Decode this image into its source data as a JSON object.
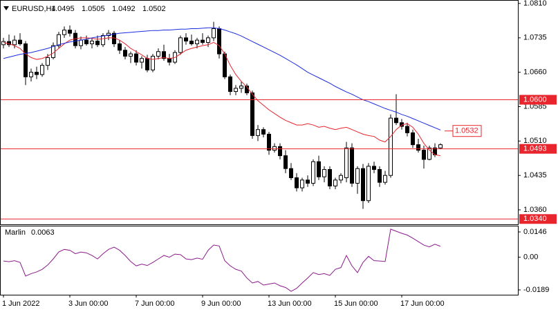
{
  "chart_data": [
    {
      "type": "candlestick",
      "symbol": "EURUSD,H4",
      "categories": [
        "1 Jun 2022",
        null,
        null,
        null,
        null,
        null,
        null,
        null,
        null,
        null,
        null,
        null,
        "3 Jun 00:00",
        null,
        null,
        null,
        null,
        null,
        null,
        null,
        null,
        null,
        null,
        null,
        "7 Jun 00:00",
        null,
        null,
        null,
        null,
        null,
        null,
        null,
        null,
        null,
        null,
        null,
        "9 Jun 00:00",
        null,
        null,
        null,
        null,
        null,
        null,
        null,
        null,
        null,
        null,
        null,
        "13 Jun 00:00",
        null,
        null,
        null,
        null,
        null,
        null,
        null,
        null,
        null,
        null,
        null,
        "15 Jun 00:00",
        null,
        null,
        null,
        null,
        null,
        null,
        null,
        null,
        null,
        null,
        null,
        "17 Jun 00:00",
        null,
        null,
        null,
        null,
        null,
        null,
        null
      ],
      "open": [
        1.072,
        1.0727,
        1.072,
        1.073,
        1.0722,
        1.065,
        1.066,
        1.0655,
        1.0675,
        1.0692,
        1.0718,
        1.0742,
        1.0752,
        1.0745,
        1.0718,
        1.073,
        1.0722,
        1.0728,
        1.072,
        1.074,
        1.0745,
        1.0722,
        1.0708,
        1.0695,
        1.07,
        1.0682,
        1.069,
        1.0665,
        1.0695,
        1.0705,
        1.069,
        1.0682,
        1.0703,
        1.0735,
        1.0728,
        1.0722,
        1.073,
        1.0725,
        1.0735,
        1.0755,
        1.07,
        1.065,
        1.0618,
        1.0625,
        1.063,
        1.0615,
        1.0522,
        1.0535,
        1.0525,
        1.049,
        1.0498,
        1.0478,
        1.045,
        1.043,
        1.0408,
        1.0425,
        1.0418,
        1.0465,
        1.0432,
        1.0448,
        1.0412,
        1.0425,
        1.043,
        1.0495,
        1.0418,
        1.045,
        1.038,
        1.0455,
        1.0448,
        1.042,
        1.0435,
        1.056,
        1.055,
        1.0542,
        1.0528,
        1.0502,
        1.049,
        1.047,
        1.0495,
        1.0495
      ],
      "high": [
        1.0735,
        1.0742,
        1.074,
        1.0745,
        1.0728,
        1.0668,
        1.0672,
        1.068,
        1.07,
        1.0725,
        1.0748,
        1.076,
        1.0762,
        1.0752,
        1.0738,
        1.074,
        1.0735,
        1.074,
        1.0745,
        1.0752,
        1.075,
        1.073,
        1.0715,
        1.0705,
        1.0708,
        1.0695,
        1.0698,
        1.07,
        1.0712,
        1.072,
        1.07,
        1.0708,
        1.074,
        1.0745,
        1.0742,
        1.0735,
        1.0745,
        1.074,
        1.077,
        1.076,
        1.0705,
        1.0655,
        1.0632,
        1.064,
        1.0635,
        1.062,
        1.0545,
        1.054,
        1.053,
        1.0505,
        1.0505,
        1.049,
        1.0462,
        1.044,
        1.043,
        1.0435,
        1.047,
        1.0478,
        1.0455,
        1.0455,
        1.043,
        1.044,
        1.0508,
        1.0505,
        1.0455,
        1.046,
        1.0462,
        1.0465,
        1.0455,
        1.0445,
        1.0568,
        1.0612,
        1.0558,
        1.055,
        1.0535,
        1.0515,
        1.05,
        1.05,
        1.0505,
        1.0505
      ],
      "low": [
        1.0712,
        1.0715,
        1.0712,
        1.0718,
        1.0632,
        1.064,
        1.0645,
        1.065,
        1.0665,
        1.0688,
        1.0712,
        1.0735,
        1.0738,
        1.0712,
        1.071,
        1.0718,
        1.0712,
        1.0715,
        1.0715,
        1.073,
        1.0715,
        1.07,
        1.0688,
        1.068,
        1.0675,
        1.0668,
        1.066,
        1.066,
        1.0688,
        1.0685,
        1.0675,
        1.0678,
        1.0698,
        1.072,
        1.0718,
        1.0712,
        1.072,
        1.0715,
        1.0728,
        1.069,
        1.0645,
        1.061,
        1.061,
        1.0615,
        1.061,
        1.0515,
        1.051,
        1.0518,
        1.048,
        1.0485,
        1.047,
        1.044,
        1.0425,
        1.04,
        1.04,
        1.041,
        1.0412,
        1.0425,
        1.042,
        1.0405,
        1.0405,
        1.0418,
        1.042,
        1.041,
        1.0395,
        1.0362,
        1.0375,
        1.044,
        1.041,
        1.0415,
        1.043,
        1.0545,
        1.0535,
        1.052,
        1.0495,
        1.0485,
        1.045,
        1.0468,
        1.0475,
        1.0492
      ],
      "close": [
        1.0727,
        1.072,
        1.073,
        1.0722,
        1.065,
        1.066,
        1.0655,
        1.0675,
        1.0692,
        1.0718,
        1.0742,
        1.0752,
        1.0745,
        1.0718,
        1.073,
        1.0722,
        1.0728,
        1.072,
        1.074,
        1.0745,
        1.0722,
        1.0708,
        1.0695,
        1.07,
        1.0682,
        1.069,
        1.0665,
        1.0695,
        1.0705,
        1.069,
        1.0682,
        1.0703,
        1.0735,
        1.0728,
        1.0722,
        1.073,
        1.0725,
        1.0735,
        1.0755,
        1.07,
        1.065,
        1.0618,
        1.0625,
        1.063,
        1.0615,
        1.0522,
        1.0535,
        1.0525,
        1.049,
        1.0498,
        1.0478,
        1.045,
        1.043,
        1.0408,
        1.0425,
        1.0418,
        1.0465,
        1.0432,
        1.0448,
        1.0412,
        1.0425,
        1.0435,
        1.0495,
        1.0418,
        1.045,
        1.038,
        1.0455,
        1.0448,
        1.042,
        1.0435,
        1.056,
        1.055,
        1.0542,
        1.0528,
        1.0502,
        1.049,
        1.047,
        1.0495,
        1.048,
        1.0502
      ],
      "series": [
        {
          "color": "#e8242c",
          "values": [
            1.0725,
            1.0722,
            1.0718,
            1.0712,
            1.07,
            1.0692,
            1.0688,
            1.069,
            1.0695,
            1.0702,
            1.0712,
            1.0722,
            1.073,
            1.0733,
            1.0735,
            1.0735,
            1.0734,
            1.0732,
            1.0733,
            1.0735,
            1.0735,
            1.073,
            1.0722,
            1.0712,
            1.0705,
            1.0698,
            1.069,
            1.0688,
            1.069,
            1.0692,
            1.069,
            1.0692,
            1.07,
            1.0708,
            1.0712,
            1.0715,
            1.0718,
            1.072,
            1.0725,
            1.0718,
            1.07,
            1.0675,
            1.0655,
            1.064,
            1.0628,
            1.0612,
            1.0598,
            1.0588,
            1.0578,
            1.057,
            1.0562,
            1.0555,
            1.055,
            1.0545,
            1.0545,
            1.0548,
            1.0545,
            1.054,
            1.0542,
            1.0538,
            1.0535,
            1.0538,
            1.054,
            1.0535,
            1.053,
            1.0525,
            1.0522,
            1.052,
            1.0512,
            1.0508,
            1.052,
            1.0535,
            1.0545,
            1.0548,
            1.054,
            1.0525,
            1.0505,
            1.049,
            1.048,
            1.0478
          ]
        },
        {
          "color": "#1a2be0",
          "values": [
            1.069,
            1.0693,
            1.0696,
            1.0699,
            1.0701,
            1.0703,
            1.0706,
            1.0709,
            1.0712,
            1.0716,
            1.072,
            1.0723,
            1.0726,
            1.0728,
            1.073,
            1.0732,
            1.0735,
            1.0737,
            1.0739,
            1.0741,
            1.0743,
            1.0745,
            1.0746,
            1.0747,
            1.0748,
            1.0749,
            1.075,
            1.0751,
            1.0751,
            1.0752,
            1.0752,
            1.0753,
            1.0754,
            1.0754,
            1.0755,
            1.0755,
            1.0756,
            1.0757,
            1.0757,
            1.0755,
            1.0752,
            1.0748,
            1.0744,
            1.0739,
            1.0733,
            1.0727,
            1.0721,
            1.0715,
            1.0709,
            1.0703,
            1.0697,
            1.069,
            1.0683,
            1.0676,
            1.0668,
            1.066,
            1.0654,
            1.0648,
            1.0642,
            1.0636,
            1.0629,
            1.0623,
            1.0617,
            1.0612,
            1.0606,
            1.06,
            1.0596,
            1.0591,
            1.0586,
            1.0581,
            1.0577,
            1.0573,
            1.0568,
            1.0564,
            1.0559,
            1.0554,
            1.0549,
            1.0544,
            1.0539,
            1.0534
          ]
        }
      ],
      "levels": [
        {
          "value": 1.06,
          "label": "1.0600"
        },
        1.0493,
        {
          "value": 1.034,
          "label": "1.0340"
        }
      ],
      "level_color": "#e8242c",
      "tags": [
        1.0532
      ],
      "ylim": [
        1.03284,
        1.08175
      ],
      "yticks": [
        {
          "value": 1.081,
          "label": "1.0810"
        },
        1.0735,
        {
          "value": 1.066,
          "label": "1.0660"
        },
        1.0585,
        {
          "value": 1.051,
          "label": "1.0510"
        },
        1.0435,
        {
          "value": 1.036,
          "label": "1.0360"
        }
      ],
      "grid": false
    },
    {
      "type": "line",
      "name": "Marlin",
      "color": "#8b1a8b",
      "values": [
        -0.0022,
        -0.0026,
        -0.002,
        -0.003,
        -0.0109,
        -0.0095,
        -0.0085,
        -0.007,
        -0.0045,
        -0.001,
        0.003,
        0.0045,
        0.004,
        0.002,
        0.003,
        0.0025,
        0.001,
        -0.001,
        0.002,
        0.0045,
        0.0058,
        0.004,
        0.001,
        -0.0025,
        -0.005,
        -0.004,
        -0.0048,
        -0.003,
        -0.001,
        0.001,
        0.0,
        0.0018,
        0.0015,
        -0.001,
        -0.0014,
        -0.0005,
        -0.0012,
        0.004,
        0.007,
        0.0065,
        -0.002,
        -0.005,
        -0.007,
        -0.008,
        -0.012,
        -0.0149,
        -0.014,
        -0.0161,
        -0.0155,
        -0.0149,
        -0.0165,
        -0.0175,
        -0.0197,
        -0.018,
        -0.0149,
        -0.012,
        -0.0089,
        -0.01,
        -0.0095,
        -0.0105,
        -0.007,
        -0.006,
        0.001,
        -0.005,
        -0.0089,
        -0.003,
        0.0005,
        -0.002,
        -0.0022,
        -0.0025,
        0.0162,
        0.015,
        0.0138,
        0.0128,
        0.011,
        0.009,
        0.007,
        0.006,
        0.0075,
        0.0063
      ],
      "ylim": [
        -0.02169,
        0.01819
      ],
      "yticks": [
        0.0146,
        {
          "value": 0,
          "label": "0.00"
        },
        -0.0189
      ]
    }
  ]
}
